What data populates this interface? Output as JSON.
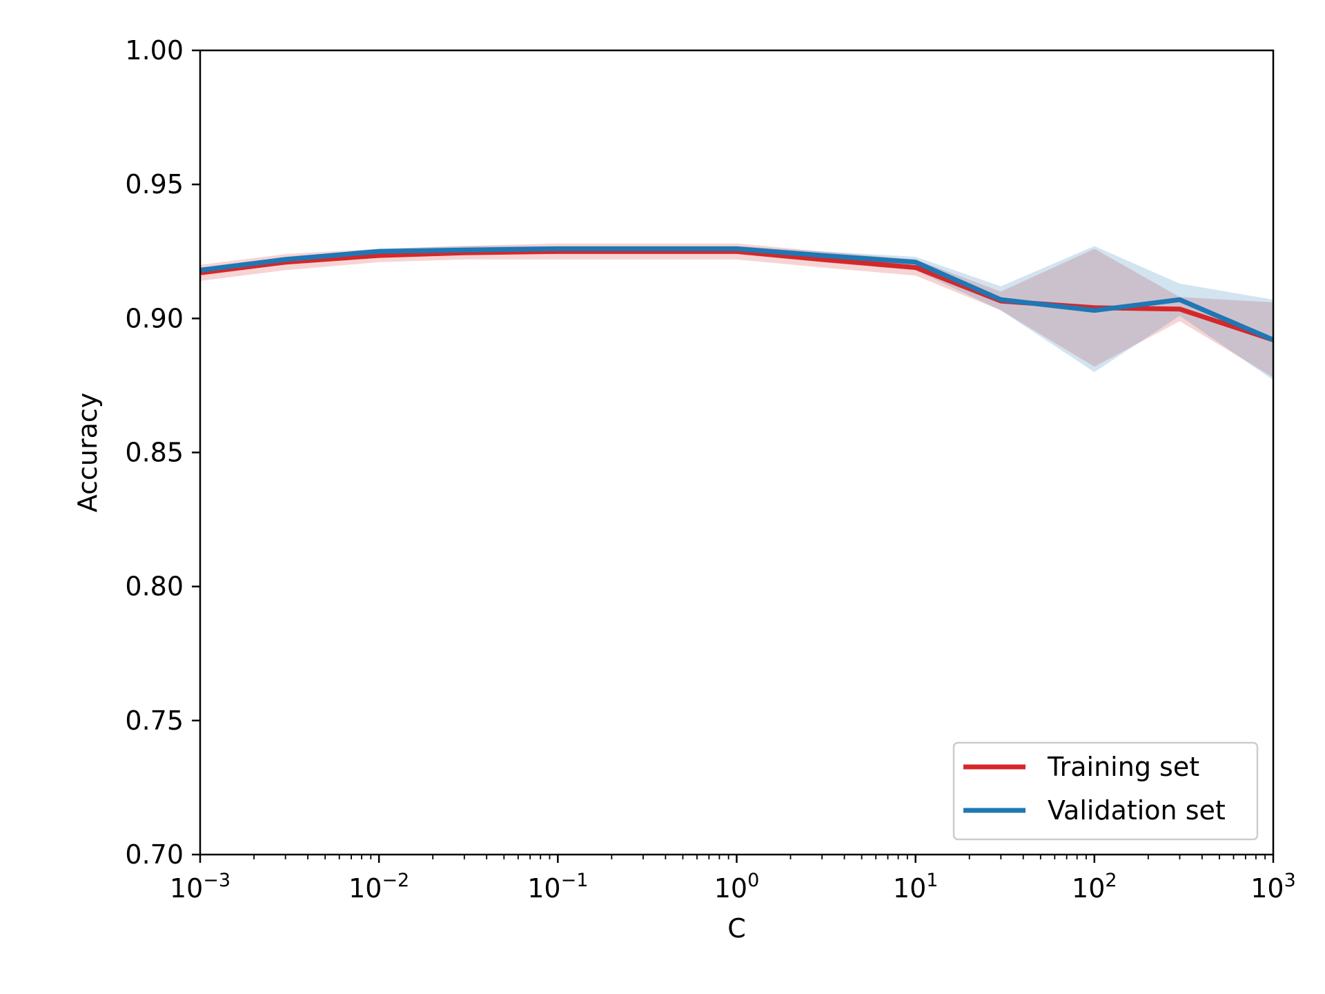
{
  "chart_data": {
    "type": "line",
    "title": "",
    "xlabel": "C",
    "ylabel": "Accuracy",
    "xscale": "log",
    "xlim": [
      0.001,
      1000
    ],
    "ylim": [
      0.7,
      1.0
    ],
    "grid": false,
    "legend_position": "bottom-right",
    "x": [
      0.001,
      0.003,
      0.01,
      0.03,
      0.1,
      0.3,
      1,
      3,
      10,
      30,
      100,
      300,
      1000
    ],
    "x_ticks": [
      {
        "value": 0.001,
        "base": "10",
        "exp": "−3"
      },
      {
        "value": 0.01,
        "base": "10",
        "exp": "−2"
      },
      {
        "value": 0.1,
        "base": "10",
        "exp": "−1"
      },
      {
        "value": 1,
        "base": "10",
        "exp": "0"
      },
      {
        "value": 10,
        "base": "10",
        "exp": "1"
      },
      {
        "value": 100,
        "base": "10",
        "exp": "2"
      },
      {
        "value": 1000,
        "base": "10",
        "exp": "3"
      }
    ],
    "y_ticks": [
      {
        "value": 0.7,
        "label": "0.70"
      },
      {
        "value": 0.75,
        "label": "0.75"
      },
      {
        "value": 0.8,
        "label": "0.80"
      },
      {
        "value": 0.85,
        "label": "0.85"
      },
      {
        "value": 0.9,
        "label": "0.90"
      },
      {
        "value": 0.95,
        "label": "0.95"
      },
      {
        "value": 1.0,
        "label": "1.00"
      }
    ],
    "series": [
      {
        "name": "Training set",
        "color": "#d62728",
        "values": [
          0.917,
          0.921,
          0.9235,
          0.9245,
          0.925,
          0.925,
          0.925,
          0.922,
          0.919,
          0.9065,
          0.904,
          0.9035,
          0.892
        ],
        "lower": [
          0.914,
          0.918,
          0.921,
          0.922,
          0.922,
          0.922,
          0.922,
          0.919,
          0.916,
          0.903,
          0.882,
          0.899,
          0.878
        ],
        "upper": [
          0.92,
          0.924,
          0.926,
          0.927,
          0.928,
          0.928,
          0.928,
          0.925,
          0.922,
          0.91,
          0.926,
          0.908,
          0.906
        ]
      },
      {
        "name": "Validation set",
        "color": "#1f77b4",
        "values": [
          0.918,
          0.922,
          0.925,
          0.9255,
          0.926,
          0.926,
          0.926,
          0.9235,
          0.921,
          0.907,
          0.903,
          0.907,
          0.892
        ],
        "lower": [
          0.917,
          0.92,
          0.923,
          0.924,
          0.924,
          0.924,
          0.924,
          0.921,
          0.918,
          0.903,
          0.88,
          0.901,
          0.877
        ],
        "upper": [
          0.919,
          0.923,
          0.926,
          0.927,
          0.927,
          0.927,
          0.927,
          0.925,
          0.923,
          0.912,
          0.927,
          0.913,
          0.907
        ]
      }
    ]
  }
}
